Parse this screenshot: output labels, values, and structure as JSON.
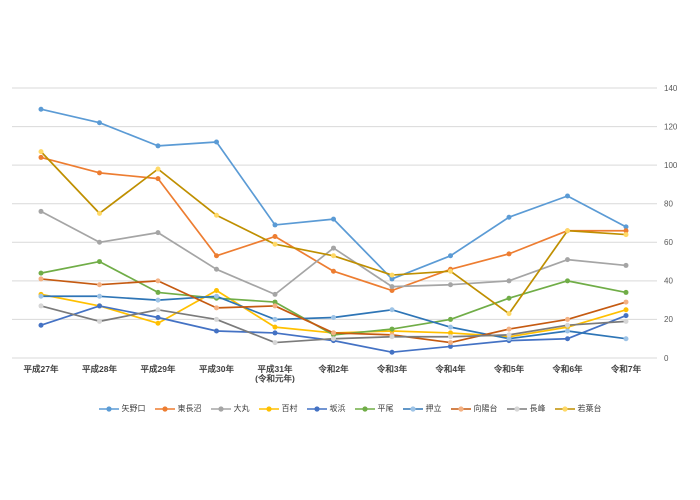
{
  "chart_data": {
    "type": "line",
    "title": "",
    "xlabel": "",
    "ylabel": "",
    "ylim": [
      0,
      140
    ],
    "ytick_step": 20,
    "yaxis_side": "right",
    "grid": true,
    "legend_position": "bottom",
    "yticks": [
      "0",
      "20",
      "40",
      "60",
      "80",
      "100",
      "120",
      "140"
    ],
    "categories": [
      "平成27年",
      "平成28年",
      "平成29年",
      "平成30年",
      "平成31年\n(令和元年)",
      "令和2年",
      "令和3年",
      "令和4年",
      "令和5年",
      "令和6年",
      "令和7年"
    ],
    "series": [
      {
        "name": "矢野口",
        "line_color": "#5B9BD5",
        "marker_color": "#5B9BD5",
        "values": [
          129,
          122,
          110,
          112,
          69,
          72,
          41,
          53,
          73,
          84,
          68
        ]
      },
      {
        "name": "東長沼",
        "line_color": "#ED7D31",
        "marker_color": "#ED7D31",
        "values": [
          104,
          96,
          93,
          53,
          63,
          45,
          35,
          46,
          54,
          66,
          66
        ]
      },
      {
        "name": "大丸",
        "line_color": "#A5A5A5",
        "marker_color": "#A5A5A5",
        "values": [
          76,
          60,
          65,
          46,
          33,
          57,
          37,
          38,
          40,
          51,
          48
        ]
      },
      {
        "name": "百村",
        "line_color": "#FFC000",
        "marker_color": "#FFC000",
        "values": [
          33,
          27,
          18,
          35,
          16,
          13,
          14,
          13,
          11,
          16,
          25
        ]
      },
      {
        "name": "坂浜",
        "line_color": "#4472C4",
        "marker_color": "#4472C4",
        "values": [
          17,
          27,
          21,
          14,
          13,
          9,
          3,
          6,
          9,
          10,
          22
        ]
      },
      {
        "name": "平尾",
        "line_color": "#70AD47",
        "marker_color": "#70AD47",
        "values": [
          44,
          50,
          34,
          31,
          29,
          12,
          15,
          20,
          31,
          40,
          34
        ]
      },
      {
        "name": "押立",
        "line_color": "#2E75B6",
        "marker_color": "#9DC3E6",
        "values": [
          32,
          32,
          30,
          32,
          20,
          21,
          25,
          16,
          10,
          14,
          10
        ]
      },
      {
        "name": "向陽台",
        "line_color": "#C55A11",
        "marker_color": "#F4B183",
        "values": [
          41,
          38,
          40,
          26,
          27,
          13,
          12,
          8,
          15,
          20,
          29
        ]
      },
      {
        "name": "長峰",
        "line_color": "#7B7B7B",
        "marker_color": "#D6D6D6",
        "values": [
          27,
          19,
          25,
          20,
          8,
          10,
          11,
          11,
          12,
          17,
          19
        ]
      },
      {
        "name": "若葉台",
        "line_color": "#BF8F00",
        "marker_color": "#FFD966",
        "values": [
          107,
          75,
          98,
          74,
          59,
          53,
          43,
          45,
          23,
          66,
          64
        ]
      }
    ],
    "colors": {
      "gridline": "#D9D9D9",
      "ytick_text": "#595959",
      "xtick_text": "#404040",
      "background": "#FFFFFF"
    }
  }
}
